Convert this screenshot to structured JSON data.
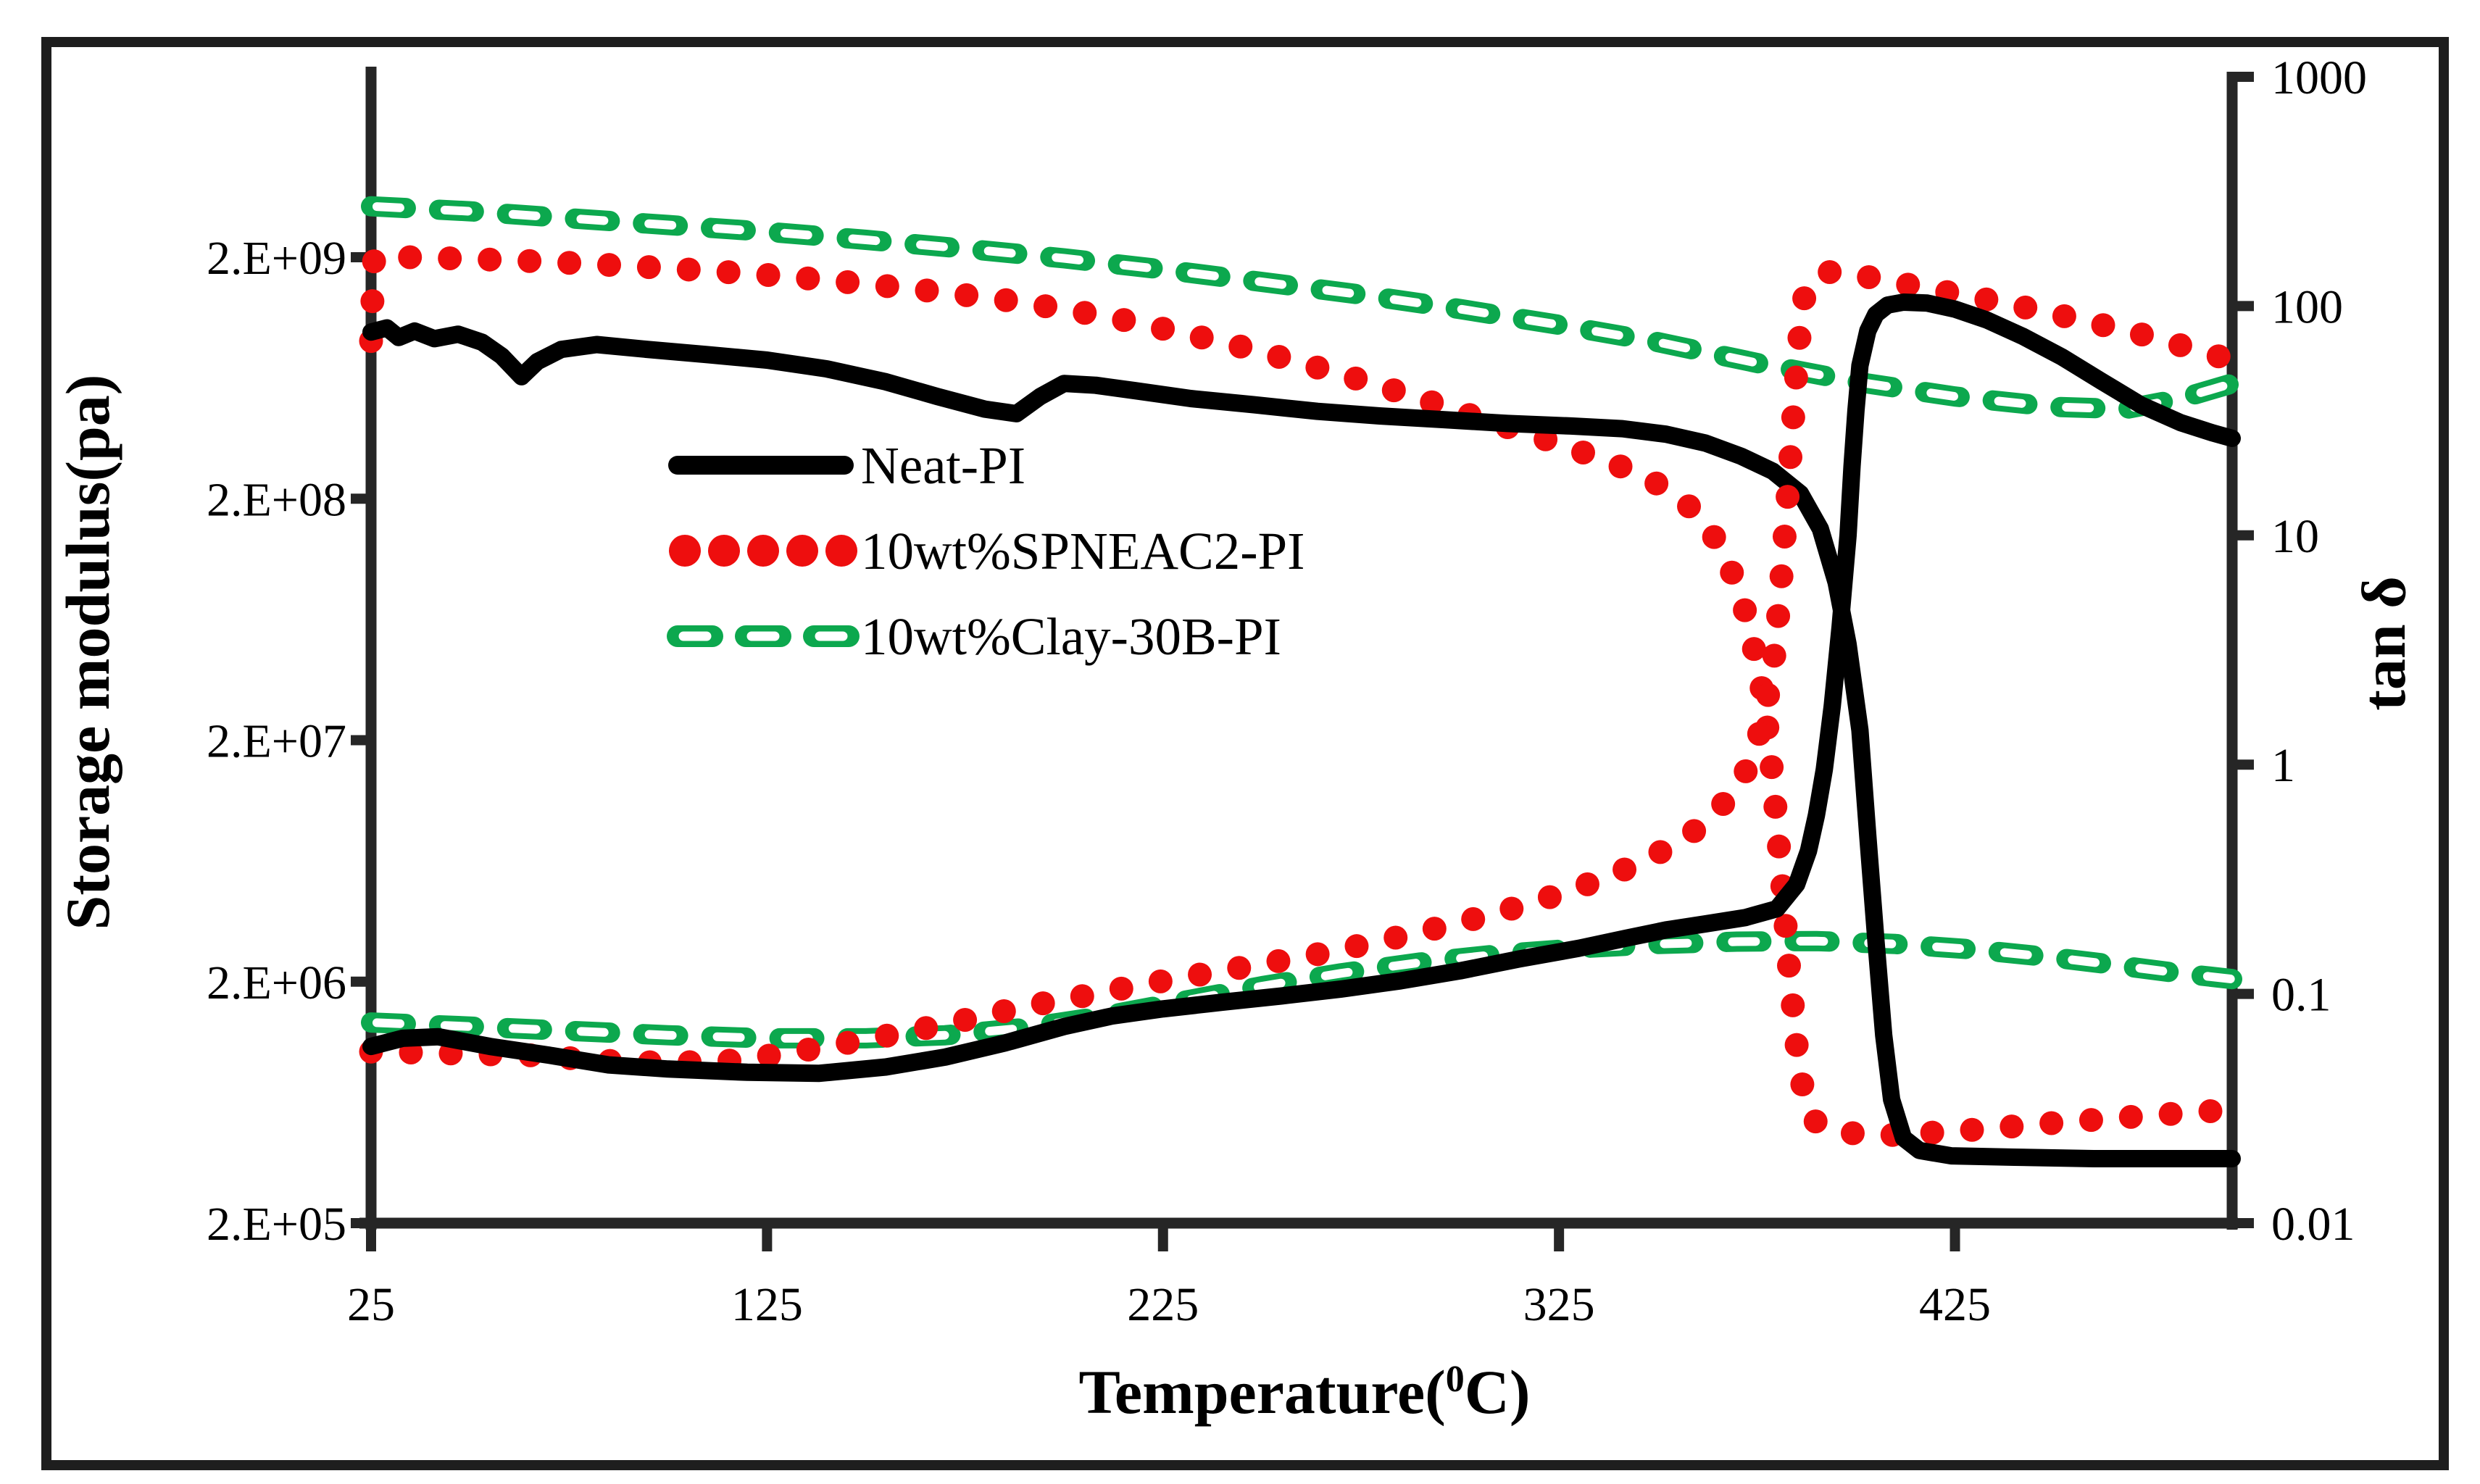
{
  "figure": {
    "frame_color": "#1e1e1e",
    "axis_color": "#262626",
    "background": "#ffffff",
    "x_title": {
      "pre": "Temperature(",
      "sup": "0",
      "post": "C)"
    },
    "y_left_title": "Storage modulus(pa)",
    "y_right_title": "tan δ",
    "legend": [
      {
        "label": "Neat-PI",
        "color": "#000000",
        "style": "solid"
      },
      {
        "label": "10wt%SPNEAC2-PI",
        "color": "#ee0e0e",
        "style": "dotted"
      },
      {
        "label": "10wt%Clay-30B-PI",
        "color": "#0ca84e",
        "style": "dashed"
      }
    ]
  },
  "chart_data": {
    "type": "line",
    "title": "",
    "xlabel": "Temperature(0C)",
    "ylabel_left": "Storage modulus(pa)",
    "ylabel_right": "tan δ",
    "x_range": [
      25,
      495
    ],
    "x_ticks": {
      "values": [
        25,
        125,
        225,
        325,
        425
      ],
      "labels": [
        "25",
        "125",
        "225",
        "325",
        "425"
      ]
    },
    "y_left": {
      "scale": "log",
      "range": [
        200000,
        2000000000
      ],
      "ticks": {
        "values": [
          2000000000.0,
          200000000.0,
          20000000.0,
          2000000.0,
          200000.0
        ],
        "labels": [
          "2.E+09",
          "2.E+08",
          "2.E+07",
          "2.E+06",
          "2.E+05"
        ]
      }
    },
    "y_right": {
      "scale": "log",
      "range": [
        0.01,
        1000
      ],
      "ticks": {
        "values": [
          1000,
          100,
          10,
          1,
          0.1,
          0.01
        ],
        "labels": [
          "1000",
          "100",
          "10",
          "1",
          "0.1",
          "0.01"
        ]
      }
    },
    "legend_position": "inside-upper-left",
    "grid": false,
    "series": [
      {
        "name": "clay30b-storage-modulus",
        "label": "10wt%Clay-30B-PI",
        "axis": "left",
        "color": "#0ca84e",
        "style": "dashed",
        "points": [
          [
            25,
            3250000000.0
          ],
          [
            50,
            3100000000.0
          ],
          [
            75,
            2900000000.0
          ],
          [
            100,
            2720000000.0
          ],
          [
            125,
            2550000000.0
          ],
          [
            150,
            2360000000.0
          ],
          [
            175,
            2170000000.0
          ],
          [
            200,
            1980000000.0
          ],
          [
            225,
            1780000000.0
          ],
          [
            250,
            1580000000.0
          ],
          [
            275,
            1400000000.0
          ],
          [
            300,
            1220000000.0
          ],
          [
            325,
            1050000000.0
          ],
          [
            350,
            890000000.0
          ],
          [
            375,
            730000000.0
          ],
          [
            400,
            610000000.0
          ],
          [
            425,
            530000000.0
          ],
          [
            450,
            480000000.0
          ],
          [
            468,
            470000000.0
          ],
          [
            482,
            520000000.0
          ],
          [
            495,
            600000000.0
          ]
        ]
      },
      {
        "name": "clay30b-tan-delta",
        "label": "10wt%Clay-30B-PI",
        "axis": "right",
        "color": "#0ca84e",
        "style": "dashed",
        "points": [
          [
            25,
            0.075
          ],
          [
            50,
            0.072
          ],
          [
            75,
            0.069
          ],
          [
            100,
            0.066
          ],
          [
            125,
            0.064
          ],
          [
            150,
            0.064
          ],
          [
            170,
            0.066
          ],
          [
            190,
            0.071
          ],
          [
            210,
            0.08
          ],
          [
            230,
            0.093
          ],
          [
            250,
            0.108
          ],
          [
            270,
            0.123
          ],
          [
            290,
            0.137
          ],
          [
            310,
            0.149
          ],
          [
            330,
            0.158
          ],
          [
            350,
            0.165
          ],
          [
            370,
            0.169
          ],
          [
            390,
            0.17
          ],
          [
            410,
            0.165
          ],
          [
            430,
            0.156
          ],
          [
            450,
            0.144
          ],
          [
            465,
            0.134
          ],
          [
            480,
            0.124
          ],
          [
            495,
            0.116
          ]
        ]
      },
      {
        "name": "spneac2-storage-modulus",
        "label": "10wt%SPNEAC2-PI",
        "axis": "left",
        "color": "#ee0e0e",
        "style": "dotted",
        "points": [
          [
            25,
            900000000.0
          ],
          [
            25.4,
            1400000000.0
          ],
          [
            25.8,
            2000000000.0
          ],
          [
            35,
            2000000000.0
          ],
          [
            50,
            1970000000.0
          ],
          [
            65,
            1930000000.0
          ],
          [
            80,
            1880000000.0
          ],
          [
            95,
            1820000000.0
          ],
          [
            110,
            1760000000.0
          ],
          [
            125,
            1690000000.0
          ],
          [
            140,
            1610000000.0
          ],
          [
            155,
            1520000000.0
          ],
          [
            170,
            1430000000.0
          ],
          [
            185,
            1330000000.0
          ],
          [
            200,
            1220000000.0
          ],
          [
            215,
            1100000000.0
          ],
          [
            230,
            970000000.0
          ],
          [
            245,
            850000000.0
          ],
          [
            260,
            730000000.0
          ],
          [
            275,
            620000000.0
          ],
          [
            290,
            520000000.0
          ],
          [
            305,
            430000000.0
          ],
          [
            320,
            360000000.0
          ],
          [
            335,
            295000000.0
          ],
          [
            345,
            255000000.0
          ],
          [
            352,
            220000000.0
          ],
          [
            358,
            185000000.0
          ],
          [
            363,
            150000000.0
          ],
          [
            367,
            115000000.0
          ],
          [
            371,
            80000000.0
          ],
          [
            374,
            50000000.0
          ],
          [
            377,
            28000000.0
          ],
          [
            379,
            14000000.0
          ],
          [
            381,
            6000000.0
          ],
          [
            383,
            2400000.0
          ],
          [
            385,
            1100000.0
          ],
          [
            387,
            650000.0
          ],
          [
            390,
            520000.0
          ],
          [
            395,
            480000.0
          ],
          [
            405,
            460000.0
          ],
          [
            425,
            480000.0
          ],
          [
            450,
            520000.0
          ],
          [
            475,
            560000.0
          ],
          [
            495,
            590000.0
          ]
        ]
      },
      {
        "name": "neat-pi-storage-modulus",
        "label": "Neat-PI",
        "axis": "left",
        "color": "#000000",
        "style": "solid",
        "points": [
          [
            25,
            980000000.0
          ],
          [
            29,
            1020000000.0
          ],
          [
            32,
            930000000.0
          ],
          [
            36,
            990000000.0
          ],
          [
            41,
            920000000.0
          ],
          [
            47,
            960000000.0
          ],
          [
            53,
            890000000.0
          ],
          [
            58,
            780000000.0
          ],
          [
            63,
            640000000.0
          ],
          [
            67,
            740000000.0
          ],
          [
            73,
            830000000.0
          ],
          [
            82,
            870000000.0
          ],
          [
            95,
            830000000.0
          ],
          [
            110,
            790000000.0
          ],
          [
            125,
            750000000.0
          ],
          [
            140,
            690000000.0
          ],
          [
            155,
            610000000.0
          ],
          [
            168,
            530000000.0
          ],
          [
            180,
            470000000.0
          ],
          [
            188,
            450000000.0
          ],
          [
            194,
            530000000.0
          ],
          [
            200,
            600000000.0
          ],
          [
            208,
            590000000.0
          ],
          [
            218,
            560000000.0
          ],
          [
            232,
            520000000.0
          ],
          [
            248,
            490000000.0
          ],
          [
            264,
            460000000.0
          ],
          [
            280,
            440000000.0
          ],
          [
            296,
            425000000.0
          ],
          [
            312,
            410000000.0
          ],
          [
            328,
            400000000.0
          ],
          [
            341,
            390000000.0
          ],
          [
            352,
            370000000.0
          ],
          [
            362,
            340000000.0
          ],
          [
            371,
            300000000.0
          ],
          [
            379,
            260000000.0
          ],
          [
            386,
            210000000.0
          ],
          [
            391,
            150000000.0
          ],
          [
            395,
            90000000.0
          ],
          [
            398,
            50000000.0
          ],
          [
            401,
            22000000.0
          ],
          [
            403,
            8000000.0
          ],
          [
            405,
            3000000.0
          ],
          [
            407,
            1200000.0
          ],
          [
            409,
            650000.0
          ],
          [
            412,
            450000.0
          ],
          [
            416,
            400000.0
          ],
          [
            424,
            380000.0
          ],
          [
            440,
            375000.0
          ],
          [
            460,
            370000.0
          ],
          [
            480,
            370000.0
          ],
          [
            495,
            370000.0
          ]
        ]
      },
      {
        "name": "spneac2-tan-delta",
        "label": "10wt%SPNEAC2-PI",
        "axis": "right",
        "color": "#ee0e0e",
        "style": "dotted",
        "points": [
          [
            25,
            0.056
          ],
          [
            45,
            0.055
          ],
          [
            65,
            0.054
          ],
          [
            85,
            0.051
          ],
          [
            100,
            0.05
          ],
          [
            115,
            0.051
          ],
          [
            130,
            0.055
          ],
          [
            145,
            0.061
          ],
          [
            160,
            0.068
          ],
          [
            175,
            0.077
          ],
          [
            190,
            0.088
          ],
          [
            205,
            0.098
          ],
          [
            220,
            0.11
          ],
          [
            235,
            0.122
          ],
          [
            250,
            0.135
          ],
          [
            265,
            0.15
          ],
          [
            280,
            0.17
          ],
          [
            295,
            0.195
          ],
          [
            308,
            0.222
          ],
          [
            320,
            0.255
          ],
          [
            331,
            0.295
          ],
          [
            341,
            0.345
          ],
          [
            350,
            0.41
          ],
          [
            357,
            0.48
          ],
          [
            363,
            0.58
          ],
          [
            368,
            0.72
          ],
          [
            372,
            0.92
          ],
          [
            375,
            1.25
          ],
          [
            377,
            1.7
          ],
          [
            379,
            2.6
          ],
          [
            380,
            3.8
          ],
          [
            381,
            6.0
          ],
          [
            382,
            10
          ],
          [
            383,
            17
          ],
          [
            384,
            30
          ],
          [
            385,
            52
          ],
          [
            386,
            82
          ],
          [
            387,
            110
          ],
          [
            389,
            131
          ],
          [
            392,
            140
          ],
          [
            396,
            142
          ],
          [
            402,
            135
          ],
          [
            410,
            127
          ],
          [
            422,
            116
          ],
          [
            434,
            106
          ],
          [
            446,
            96
          ],
          [
            458,
            86
          ],
          [
            470,
            77
          ],
          [
            480,
            69
          ],
          [
            488,
            63
          ],
          [
            495,
            58
          ]
        ]
      },
      {
        "name": "neat-pi-tan-delta",
        "label": "Neat-PI",
        "axis": "right",
        "color": "#000000",
        "style": "solid",
        "points": [
          [
            25,
            0.059
          ],
          [
            33,
            0.064
          ],
          [
            42,
            0.065
          ],
          [
            55,
            0.059
          ],
          [
            70,
            0.054
          ],
          [
            85,
            0.049
          ],
          [
            100,
            0.047
          ],
          [
            120,
            0.0455
          ],
          [
            138,
            0.045
          ],
          [
            155,
            0.048
          ],
          [
            170,
            0.053
          ],
          [
            185,
            0.061
          ],
          [
            200,
            0.072
          ],
          [
            212,
            0.08
          ],
          [
            225,
            0.086
          ],
          [
            240,
            0.092
          ],
          [
            255,
            0.098
          ],
          [
            270,
            0.105
          ],
          [
            285,
            0.114
          ],
          [
            300,
            0.126
          ],
          [
            315,
            0.142
          ],
          [
            330,
            0.158
          ],
          [
            342,
            0.175
          ],
          [
            352,
            0.19
          ],
          [
            362,
            0.202
          ],
          [
            372,
            0.215
          ],
          [
            380,
            0.235
          ],
          [
            385,
            0.3
          ],
          [
            388,
            0.42
          ],
          [
            390,
            0.6
          ],
          [
            392,
            0.95
          ],
          [
            394,
            1.8
          ],
          [
            396,
            4.0
          ],
          [
            398,
            10
          ],
          [
            399,
            20
          ],
          [
            400,
            35
          ],
          [
            401,
            55
          ],
          [
            403,
            78
          ],
          [
            405,
            92
          ],
          [
            408,
            101
          ],
          [
            412,
            104
          ],
          [
            418,
            103
          ],
          [
            425,
            97
          ],
          [
            433,
            87
          ],
          [
            442,
            74
          ],
          [
            452,
            60
          ],
          [
            462,
            47
          ],
          [
            472,
            37
          ],
          [
            482,
            31
          ],
          [
            490,
            28
          ],
          [
            495,
            26.5
          ]
        ]
      }
    ]
  }
}
